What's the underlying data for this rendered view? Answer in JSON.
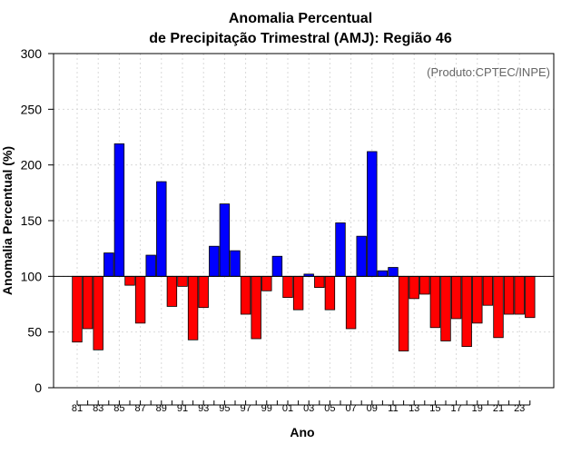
{
  "chart_data": {
    "type": "bar",
    "title_line1": "Anomalia Percentual",
    "title_line2": "de Precipitação Trimestral (AMJ): Região 46",
    "xlabel": "Ano",
    "ylabel": "Anomalia Percentual (%)",
    "credit": "(Produto:CPTEC/INPE)",
    "ylim": [
      0,
      300
    ],
    "yticks": [
      0,
      50,
      100,
      150,
      200,
      250,
      300
    ],
    "baseline": 100,
    "grid": true,
    "colors": {
      "above": "#0000ff",
      "below": "#ff0000",
      "outline": "#000000"
    },
    "x_tick_labels": [
      "81",
      "83",
      "85",
      "87",
      "89",
      "91",
      "93",
      "95",
      "97",
      "99",
      "01",
      "03",
      "05",
      "07",
      "09",
      "11",
      "13",
      "15",
      "17",
      "19",
      "21",
      "23"
    ],
    "categories": [
      "1981",
      "1982",
      "1983",
      "1984",
      "1985",
      "1986",
      "1987",
      "1988",
      "1989",
      "1990",
      "1991",
      "1992",
      "1993",
      "1994",
      "1995",
      "1996",
      "1997",
      "1998",
      "1999",
      "2000",
      "2001",
      "2002",
      "2003",
      "2004",
      "2005",
      "2006",
      "2007",
      "2008",
      "2009",
      "2010",
      "2011",
      "2012",
      "2013",
      "2014",
      "2015",
      "2016",
      "2017",
      "2018",
      "2019",
      "2020",
      "2021",
      "2022",
      "2023",
      "2024"
    ],
    "values": [
      41,
      53,
      34,
      121,
      219,
      92,
      58,
      119,
      185,
      73,
      91,
      43,
      72,
      127,
      165,
      123,
      66,
      44,
      87,
      118,
      81,
      70,
      102,
      90,
      70,
      148,
      53,
      136,
      212,
      105,
      108,
      33,
      80,
      84,
      54,
      42,
      62,
      37,
      58,
      74,
      45,
      66,
      66,
      63
    ]
  }
}
